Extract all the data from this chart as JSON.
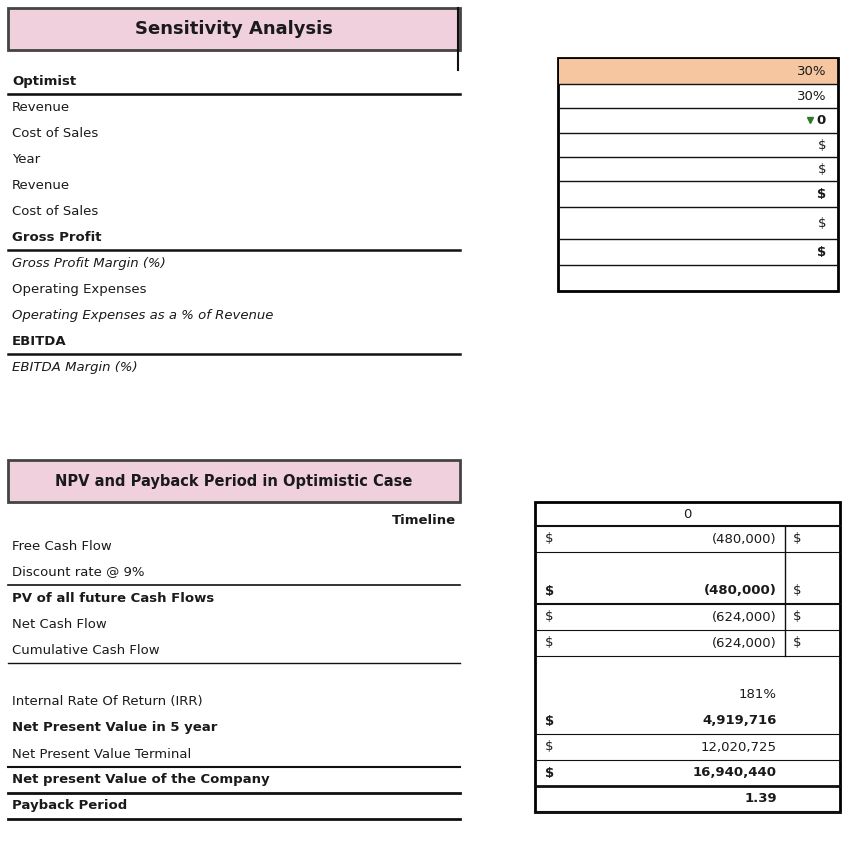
{
  "bg_color": "#ffffff",
  "title1": "Sensitivity Analysis",
  "title1_bg": "#f0d0dc",
  "title2": "NPV and Payback Period in Optimistic Case",
  "title2_bg": "#f0d0dc",
  "section1_left_rows": [
    {
      "label": "Optimist",
      "style": "bold",
      "line_above": true,
      "line_below": true
    },
    {
      "label": "Revenue",
      "style": "normal",
      "line_above": false,
      "line_below": false
    },
    {
      "label": "Cost of Sales",
      "style": "normal",
      "line_above": false,
      "line_below": false
    },
    {
      "label": "Year",
      "style": "normal",
      "line_above": false,
      "line_below": false
    },
    {
      "label": "Revenue",
      "style": "normal",
      "line_above": false,
      "line_below": false
    },
    {
      "label": "Cost of Sales",
      "style": "normal",
      "line_above": false,
      "line_below": false
    },
    {
      "label": "Gross Profit",
      "style": "bold",
      "line_above": true,
      "line_below": true
    },
    {
      "label": "Gross Profit Margin (%)",
      "style": "italic",
      "line_above": false,
      "line_below": false
    },
    {
      "label": "Operating Expenses",
      "style": "normal",
      "line_above": false,
      "line_below": false
    },
    {
      "label": "Operating Expenses as a % of Revenue",
      "style": "italic",
      "line_above": false,
      "line_below": false
    },
    {
      "label": "EBITDA",
      "style": "bold",
      "line_above": true,
      "line_below": true
    },
    {
      "label": "EBITDA Margin (%)",
      "style": "italic",
      "line_above": false,
      "line_below": false
    }
  ],
  "section1_right_rows": [
    {
      "val": "30%",
      "bg": "#f5c6a0",
      "bold": false,
      "line_below": true
    },
    {
      "val": "30%",
      "bg": "#ffffff",
      "bold": false,
      "line_below": true
    },
    {
      "val": "0",
      "bg": "#ffffff",
      "bold": true,
      "line_below": true,
      "green_arrow": true
    },
    {
      "val": "$",
      "bg": "#ffffff",
      "bold": false,
      "line_below": true
    },
    {
      "val": "$",
      "bg": "#ffffff",
      "bold": false,
      "line_below": true
    },
    {
      "val": "$",
      "bg": "#ffffff",
      "bold": true,
      "line_below": true
    },
    {
      "val": "$",
      "bg": "#ffffff",
      "bold": false,
      "line_below": true
    },
    {
      "val": "$",
      "bg": "#ffffff",
      "bold": true,
      "line_below": true
    },
    {
      "val": "",
      "bg": "#ffffff",
      "bold": false,
      "line_below": false
    }
  ],
  "section2_left_rows": [
    {
      "label": "Timeline",
      "style": "normal",
      "right_align": true
    },
    {
      "label": "Free Cash Flow",
      "style": "normal"
    },
    {
      "label": "Discount rate @ 9%",
      "style": "normal"
    },
    {
      "label": "PV of all future Cash Flows",
      "style": "bold"
    },
    {
      "label": "Net Cash Flow",
      "style": "normal"
    },
    {
      "label": "Cumulative Cash Flow",
      "style": "normal"
    },
    {
      "label": "",
      "style": "normal"
    },
    {
      "label": "Internal Rate Of Return (IRR)",
      "style": "normal"
    },
    {
      "label": "Net Present Value in 5 year",
      "style": "bold"
    },
    {
      "label": "Net Present Value Terminal",
      "style": "normal"
    },
    {
      "label": "Net present Value of the Company",
      "style": "bold"
    },
    {
      "label": "Payback Period",
      "style": "bold"
    }
  ],
  "section2_right_header": "0",
  "section2_right_rows": [
    {
      "s1": "$",
      "val": "(480,000)",
      "s2": "$",
      "bold": false,
      "line_lw": 0.8
    },
    {
      "s1": "",
      "val": "",
      "s2": "",
      "bold": false,
      "line_lw": 0.0
    },
    {
      "s1": "$",
      "val": "(480,000)",
      "s2": "$",
      "bold": true,
      "line_lw": 1.5
    },
    {
      "s1": "$",
      "val": "(624,000)",
      "s2": "$",
      "bold": false,
      "line_lw": 0.8
    },
    {
      "s1": "$",
      "val": "(624,000)",
      "s2": "$",
      "bold": false,
      "line_lw": 0.8
    },
    {
      "s1": "",
      "val": "",
      "s2": "",
      "bold": false,
      "line_lw": 0.0
    },
    {
      "s1": "",
      "val": "181%",
      "s2": "",
      "bold": false,
      "line_lw": 0.0
    },
    {
      "s1": "$",
      "val": "4,919,716",
      "s2": "",
      "bold": true,
      "line_lw": 0.8
    },
    {
      "s1": "$",
      "val": "12,020,725",
      "s2": "",
      "bold": false,
      "line_lw": 0.8
    },
    {
      "s1": "$",
      "val": "16,940,440",
      "s2": "",
      "bold": true,
      "line_lw": 2.0
    },
    {
      "s1": "",
      "val": "1.39",
      "s2": "",
      "bold": true,
      "line_lw": 0.0
    }
  ]
}
